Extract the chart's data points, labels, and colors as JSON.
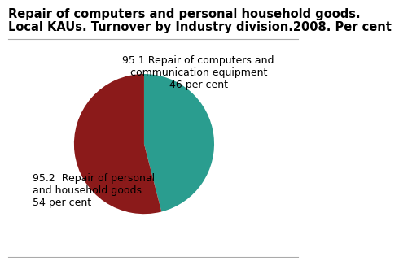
{
  "title_line1": "Repair of computers and personal household goods.",
  "title_line2": "Local KAUs. Turnover by Industry division.2008. Per cent",
  "slices": [
    46,
    54
  ],
  "colors": [
    "#2a9d8f",
    "#8b1a1a"
  ],
  "label_teal": "95.1 Repair of computers and\ncommunication equipment\n46 per cent",
  "label_red": "95.2  Repair of personal\nand household goods\n54 per cent",
  "startangle": 90,
  "title_fontsize": 10.5,
  "label_fontsize": 9,
  "background_color": "#ffffff"
}
